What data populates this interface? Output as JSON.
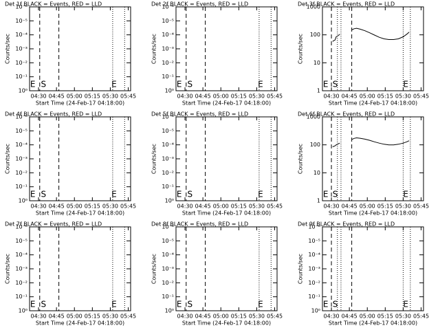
{
  "chart_data": [
    {
      "type": "line",
      "title": "Det 1f BLACK = Events, RED = LLD",
      "y_label": "Counts/sec",
      "x_label": "Start Time (24-Feb-17 04:18:00)",
      "log_y": true,
      "xlim": [
        4.5,
        89
      ],
      "xticks": [
        {
          "value": 12,
          "label": "04:30"
        },
        {
          "value": 27,
          "label": "04:45"
        },
        {
          "value": 42,
          "label": "05:00"
        },
        {
          "value": 57,
          "label": "05:15"
        },
        {
          "value": 72,
          "label": "05:30"
        },
        {
          "value": 87,
          "label": "05:45"
        }
      ],
      "ylim": [
        1,
        1e-06
      ],
      "yticks": [
        {
          "value": 1,
          "label": "10⁰"
        },
        {
          "value": 0.1,
          "label": "10⁻¹"
        },
        {
          "value": 0.01,
          "label": "10⁻²"
        },
        {
          "value": 0.001,
          "label": "10⁻³"
        },
        {
          "value": 0.0001,
          "label": "10⁻⁴"
        },
        {
          "value": 1e-05,
          "label": "10⁻⁵"
        },
        {
          "value": 1e-06,
          "label": "10⁻⁶"
        }
      ],
      "vlines": [
        {
          "x": 13,
          "style": "dashed"
        },
        {
          "x": 29,
          "style": "dashed"
        },
        {
          "x": 74,
          "style": "dotted"
        },
        {
          "x": 84,
          "style": "dotted"
        }
      ],
      "annotations": [
        {
          "text": "E",
          "x": 5
        },
        {
          "text": "S",
          "x": 14
        },
        {
          "text": "E",
          "x": 73
        }
      ],
      "series": []
    },
    {
      "type": "line",
      "title": "Det 2f BLACK = Events, RED = LLD",
      "y_label": "Counts/sec",
      "x_label": "Start Time (24-Feb-17 04:18:00)",
      "log_y": true,
      "xlim": [
        4.5,
        89
      ],
      "xticks": [
        {
          "value": 12,
          "label": "04:30"
        },
        {
          "value": 27,
          "label": "04:45"
        },
        {
          "value": 42,
          "label": "05:00"
        },
        {
          "value": 57,
          "label": "05:15"
        },
        {
          "value": 72,
          "label": "05:30"
        },
        {
          "value": 87,
          "label": "05:45"
        }
      ],
      "ylim": [
        1,
        1e-06
      ],
      "yticks": [
        {
          "value": 1,
          "label": "10⁰"
        },
        {
          "value": 0.1,
          "label": "10⁻¹"
        },
        {
          "value": 0.01,
          "label": "10⁻²"
        },
        {
          "value": 0.001,
          "label": "10⁻³"
        },
        {
          "value": 0.0001,
          "label": "10⁻⁴"
        },
        {
          "value": 1e-05,
          "label": "10⁻⁵"
        },
        {
          "value": 1e-06,
          "label": "10⁻⁶"
        }
      ],
      "vlines": [
        {
          "x": 13,
          "style": "dashed"
        },
        {
          "x": 29,
          "style": "dashed"
        },
        {
          "x": 74,
          "style": "dotted"
        },
        {
          "x": 84,
          "style": "dotted"
        }
      ],
      "annotations": [
        {
          "text": "E",
          "x": 5
        },
        {
          "text": "S",
          "x": 14
        },
        {
          "text": "E",
          "x": 73
        }
      ],
      "series": []
    },
    {
      "type": "line",
      "title": "Det 3f BLACK = Events, RED = LLD",
      "y_label": "Counts/sec",
      "x_label": "Start Time (24-Feb-17 04:18:00)",
      "log_y": true,
      "xlim": [
        4.5,
        89
      ],
      "xticks": [
        {
          "value": 12,
          "label": "04:30"
        },
        {
          "value": 27,
          "label": "04:45"
        },
        {
          "value": 42,
          "label": "05:00"
        },
        {
          "value": 57,
          "label": "05:15"
        },
        {
          "value": 72,
          "label": "05:30"
        },
        {
          "value": 87,
          "label": "05:45"
        }
      ],
      "ylim": [
        1,
        1000
      ],
      "yticks": [
        1,
        10,
        100,
        1000
      ],
      "vlines": [
        {
          "x": 12,
          "style": "dashed"
        },
        {
          "x": 17,
          "style": "dotted"
        },
        {
          "x": 20,
          "style": "dotted"
        },
        {
          "x": 29,
          "style": "dashed"
        },
        {
          "x": 72,
          "style": "dotted"
        },
        {
          "x": 78,
          "style": "dotted"
        }
      ],
      "annotations": [
        {
          "text": "E",
          "x": 5
        },
        {
          "text": "S",
          "x": 13
        },
        {
          "text": "E",
          "x": 72
        }
      ],
      "series": [
        {
          "color": "#000000",
          "x": [
            13,
            14,
            15,
            16,
            17,
            18,
            19,
            24,
            29,
            31,
            33,
            36,
            40,
            44,
            48,
            52,
            56,
            60,
            64,
            68,
            72,
            75,
            77
          ],
          "values": [
            58,
            62,
            65,
            85,
            90,
            96,
            105,
            null,
            150,
            165,
            172,
            160,
            140,
            118,
            98,
            82,
            72,
            68,
            68,
            72,
            85,
            105,
            125
          ]
        }
      ]
    },
    {
      "type": "line",
      "title": "Det 4f BLACK = Events, RED = LLD",
      "y_label": "Counts/sec",
      "x_label": "Start Time (24-Feb-17 04:18:00)",
      "log_y": true,
      "xlim": [
        4.5,
        89
      ],
      "xticks": [
        {
          "value": 12,
          "label": "04:30"
        },
        {
          "value": 27,
          "label": "04:45"
        },
        {
          "value": 42,
          "label": "05:00"
        },
        {
          "value": 57,
          "label": "05:15"
        },
        {
          "value": 72,
          "label": "05:30"
        },
        {
          "value": 87,
          "label": "05:45"
        }
      ],
      "ylim": [
        1,
        1e-06
      ],
      "yticks": [
        {
          "value": 1,
          "label": "10⁰"
        },
        {
          "value": 0.1,
          "label": "10⁻¹"
        },
        {
          "value": 0.01,
          "label": "10⁻²"
        },
        {
          "value": 0.001,
          "label": "10⁻³"
        },
        {
          "value": 0.0001,
          "label": "10⁻⁴"
        },
        {
          "value": 1e-05,
          "label": "10⁻⁵"
        },
        {
          "value": 1e-06,
          "label": "10⁻⁶"
        }
      ],
      "vlines": [
        {
          "x": 13,
          "style": "dashed"
        },
        {
          "x": 29,
          "style": "dashed"
        },
        {
          "x": 74,
          "style": "dotted"
        },
        {
          "x": 84,
          "style": "dotted"
        }
      ],
      "annotations": [
        {
          "text": "E",
          "x": 5
        },
        {
          "text": "S",
          "x": 14
        },
        {
          "text": "E",
          "x": 73
        }
      ],
      "series": []
    },
    {
      "type": "line",
      "title": "Det 5f BLACK = Events, RED = LLD",
      "y_label": "Counts/sec",
      "x_label": "Start Time (24-Feb-17 04:18:00)",
      "log_y": true,
      "xlim": [
        4.5,
        89
      ],
      "xticks": [
        {
          "value": 12,
          "label": "04:30"
        },
        {
          "value": 27,
          "label": "04:45"
        },
        {
          "value": 42,
          "label": "05:00"
        },
        {
          "value": 57,
          "label": "05:15"
        },
        {
          "value": 72,
          "label": "05:30"
        },
        {
          "value": 87,
          "label": "05:45"
        }
      ],
      "ylim": [
        1,
        1e-06
      ],
      "yticks": [
        {
          "value": 1,
          "label": "10⁰"
        },
        {
          "value": 0.1,
          "label": "10⁻¹"
        },
        {
          "value": 0.01,
          "label": "10⁻²"
        },
        {
          "value": 0.001,
          "label": "10⁻³"
        },
        {
          "value": 0.0001,
          "label": "10⁻⁴"
        },
        {
          "value": 1e-05,
          "label": "10⁻⁵"
        },
        {
          "value": 1e-06,
          "label": "10⁻⁶"
        }
      ],
      "vlines": [
        {
          "x": 13,
          "style": "dashed"
        },
        {
          "x": 29,
          "style": "dashed"
        },
        {
          "x": 74,
          "style": "dotted"
        },
        {
          "x": 84,
          "style": "dotted"
        }
      ],
      "annotations": [
        {
          "text": "E",
          "x": 5
        },
        {
          "text": "S",
          "x": 14
        },
        {
          "text": "E",
          "x": 73
        }
      ],
      "series": []
    },
    {
      "type": "line",
      "title": "Det 6f BLACK = Events, RED = LLD",
      "y_label": "Counts/sec",
      "x_label": "Start Time (24-Feb-17 04:18:00)",
      "log_y": true,
      "xlim": [
        4.5,
        89
      ],
      "xticks": [
        {
          "value": 12,
          "label": "04:30"
        },
        {
          "value": 27,
          "label": "04:45"
        },
        {
          "value": 42,
          "label": "05:00"
        },
        {
          "value": 57,
          "label": "05:15"
        },
        {
          "value": 72,
          "label": "05:30"
        },
        {
          "value": 87,
          "label": "05:45"
        }
      ],
      "ylim": [
        1,
        1000
      ],
      "yticks": [
        1,
        10,
        100,
        1000
      ],
      "vlines": [
        {
          "x": 12,
          "style": "dashed"
        },
        {
          "x": 17,
          "style": "dotted"
        },
        {
          "x": 20,
          "style": "dotted"
        },
        {
          "x": 29,
          "style": "dashed"
        },
        {
          "x": 72,
          "style": "dotted"
        },
        {
          "x": 78,
          "style": "dotted"
        }
      ],
      "annotations": [
        {
          "text": "E",
          "x": 5
        },
        {
          "text": "S",
          "x": 13
        },
        {
          "text": "E",
          "x": 72
        }
      ],
      "series": [
        {
          "color": "#000000",
          "x": [
            13,
            14,
            15,
            16,
            17,
            18,
            19,
            24,
            29,
            31,
            33,
            36,
            40,
            44,
            48,
            52,
            56,
            60,
            64,
            68,
            72,
            75,
            77
          ],
          "values": [
            85,
            88,
            92,
            100,
            105,
            110,
            115,
            null,
            155,
            170,
            178,
            172,
            160,
            145,
            128,
            115,
            105,
            100,
            100,
            105,
            115,
            128,
            140
          ]
        }
      ]
    },
    {
      "type": "line",
      "title": "Det 7f BLACK = Events, RED = LLD",
      "y_label": "Counts/sec",
      "x_label": "Start Time (24-Feb-17 04:18:00)",
      "log_y": true,
      "xlim": [
        4.5,
        89
      ],
      "xticks": [
        {
          "value": 12,
          "label": "04:30"
        },
        {
          "value": 27,
          "label": "04:45"
        },
        {
          "value": 42,
          "label": "05:00"
        },
        {
          "value": 57,
          "label": "05:15"
        },
        {
          "value": 72,
          "label": "05:30"
        },
        {
          "value": 87,
          "label": "05:45"
        }
      ],
      "ylim": [
        1,
        1e-06
      ],
      "yticks": [
        {
          "value": 1,
          "label": "10⁰"
        },
        {
          "value": 0.1,
          "label": "10⁻¹"
        },
        {
          "value": 0.01,
          "label": "10⁻²"
        },
        {
          "value": 0.001,
          "label": "10⁻³"
        },
        {
          "value": 0.0001,
          "label": "10⁻⁴"
        },
        {
          "value": 1e-05,
          "label": "10⁻⁵"
        },
        {
          "value": 1e-06,
          "label": "10⁻⁶"
        }
      ],
      "vlines": [
        {
          "x": 13,
          "style": "dashed"
        },
        {
          "x": 29,
          "style": "dashed"
        },
        {
          "x": 74,
          "style": "dotted"
        },
        {
          "x": 84,
          "style": "dotted"
        }
      ],
      "annotations": [
        {
          "text": "E",
          "x": 5
        },
        {
          "text": "S",
          "x": 14
        },
        {
          "text": "E",
          "x": 73
        }
      ],
      "series": []
    },
    {
      "type": "line",
      "title": "Det 8f BLACK = Events, RED = LLD",
      "y_label": "Counts/sec",
      "x_label": "Start Time (24-Feb-17 04:18:00)",
      "log_y": true,
      "xlim": [
        4.5,
        89
      ],
      "xticks": [
        {
          "value": 12,
          "label": "04:30"
        },
        {
          "value": 27,
          "label": "04:45"
        },
        {
          "value": 42,
          "label": "05:00"
        },
        {
          "value": 57,
          "label": "05:15"
        },
        {
          "value": 72,
          "label": "05:30"
        },
        {
          "value": 87,
          "label": "05:45"
        }
      ],
      "ylim": [
        1,
        1e-06
      ],
      "yticks": [
        {
          "value": 1,
          "label": "10⁰"
        },
        {
          "value": 0.1,
          "label": "10⁻¹"
        },
        {
          "value": 0.01,
          "label": "10⁻²"
        },
        {
          "value": 0.001,
          "label": "10⁻³"
        },
        {
          "value": 0.0001,
          "label": "10⁻⁴"
        },
        {
          "value": 1e-05,
          "label": "10⁻⁵"
        },
        {
          "value": 1e-06,
          "label": "10⁻⁶"
        }
      ],
      "vlines": [
        {
          "x": 13,
          "style": "dashed"
        },
        {
          "x": 29,
          "style": "dashed"
        },
        {
          "x": 74,
          "style": "dotted"
        },
        {
          "x": 84,
          "style": "dotted"
        }
      ],
      "annotations": [
        {
          "text": "E",
          "x": 5
        },
        {
          "text": "S",
          "x": 14
        },
        {
          "text": "E",
          "x": 73
        }
      ],
      "series": []
    },
    {
      "type": "line",
      "title": "Det 9f BLACK = Events, RED = LLD",
      "y_label": "Counts/sec",
      "x_label": "Start Time (24-Feb-17 04:18:00)",
      "log_y": true,
      "xlim": [
        4.5,
        89
      ],
      "xticks": [
        {
          "value": 12,
          "label": "04:30"
        },
        {
          "value": 27,
          "label": "04:45"
        },
        {
          "value": 42,
          "label": "05:00"
        },
        {
          "value": 57,
          "label": "05:15"
        },
        {
          "value": 72,
          "label": "05:30"
        },
        {
          "value": 87,
          "label": "05:45"
        }
      ],
      "ylim": [
        1,
        1e-06
      ],
      "yticks": [
        {
          "value": 1,
          "label": "10⁰"
        },
        {
          "value": 0.1,
          "label": "10⁻¹"
        },
        {
          "value": 0.01,
          "label": "10⁻²"
        },
        {
          "value": 0.001,
          "label": "10⁻³"
        },
        {
          "value": 0.0001,
          "label": "10⁻⁴"
        },
        {
          "value": 1e-05,
          "label": "10⁻⁵"
        },
        {
          "value": 1e-06,
          "label": "10⁻⁶"
        }
      ],
      "vlines": [
        {
          "x": 12,
          "style": "dashed"
        },
        {
          "x": 17,
          "style": "dotted"
        },
        {
          "x": 20,
          "style": "dotted"
        },
        {
          "x": 29,
          "style": "dashed"
        },
        {
          "x": 72,
          "style": "dotted"
        },
        {
          "x": 78,
          "style": "dotted"
        }
      ],
      "annotations": [
        {
          "text": "E",
          "x": 5
        },
        {
          "text": "S",
          "x": 13
        },
        {
          "text": "E",
          "x": 72
        }
      ],
      "series": []
    }
  ]
}
